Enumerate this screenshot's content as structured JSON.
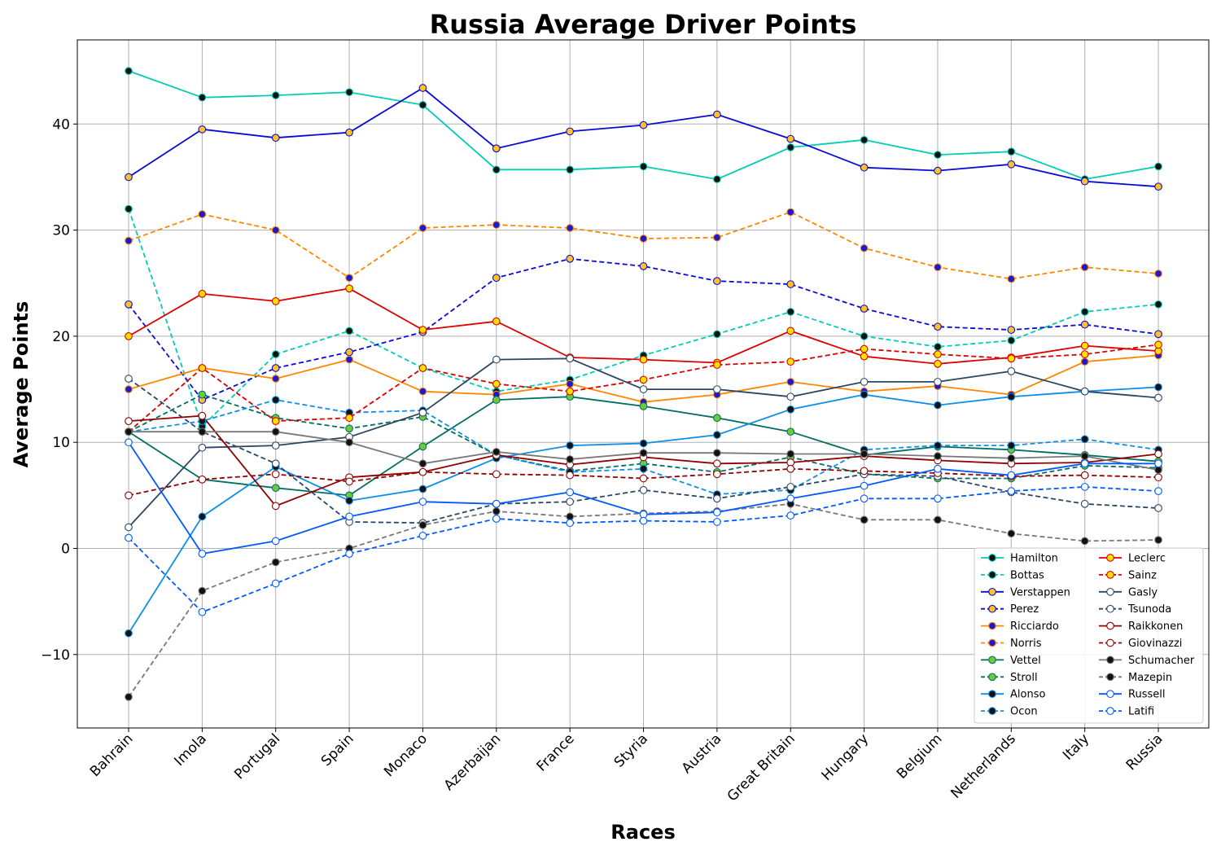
{
  "chart_data": {
    "type": "line",
    "title": "Russia Average Driver Points",
    "xlabel": "Races",
    "ylabel": "Average Points",
    "ylim": [
      -16.5,
      48
    ],
    "yticks": [
      -10,
      0,
      10,
      20,
      30,
      40
    ],
    "ytick_labels": [
      "−10",
      "0",
      "10",
      "20",
      "30",
      "40"
    ],
    "grid": true,
    "legend_position": "lower-right",
    "categories": [
      "Bahrain",
      "Imola",
      "Portugal",
      "Spain",
      "Monaco",
      "Azerbaijan",
      "France",
      "Styria",
      "Austria",
      "Great Britain",
      "Hungary",
      "Belgium",
      "Netherlands",
      "Italy",
      "Russia"
    ],
    "series": [
      {
        "name": "Hamilton",
        "color": "#00cdb5",
        "marker": "#111111",
        "dashed": false,
        "values": [
          45.0,
          42.5,
          42.7,
          43.0,
          41.8,
          35.7,
          35.7,
          36.0,
          34.8,
          37.8,
          38.5,
          37.1,
          37.4,
          34.8,
          36.0
        ]
      },
      {
        "name": "Bottas",
        "color": "#00cdb5",
        "marker": "#111111",
        "dashed": true,
        "values": [
          32.0,
          11.5,
          18.3,
          20.5,
          17.0,
          14.8,
          15.9,
          18.2,
          20.2,
          22.3,
          20.0,
          19.0,
          19.6,
          22.3,
          23.0
        ]
      },
      {
        "name": "Verstappen",
        "color": "#0a0ad6",
        "marker": "#ffc125",
        "dashed": false,
        "values": [
          35.0,
          39.5,
          38.7,
          39.2,
          43.4,
          37.7,
          39.3,
          39.9,
          40.9,
          38.6,
          35.9,
          35.6,
          36.2,
          34.6,
          34.1
        ]
      },
      {
        "name": "Perez",
        "color": "#0a0ad6",
        "marker": "#ffc125",
        "dashed": true,
        "values": [
          23.0,
          14.0,
          17.0,
          18.5,
          20.4,
          25.5,
          27.3,
          26.6,
          25.2,
          24.9,
          22.6,
          20.9,
          20.6,
          21.1,
          20.2
        ]
      },
      {
        "name": "Ricciardo",
        "color": "#ff8700",
        "marker": "#1a1ad6",
        "dashed": false,
        "values": [
          15.0,
          17.0,
          16.0,
          17.8,
          14.8,
          14.5,
          15.5,
          13.8,
          14.5,
          15.7,
          14.8,
          15.3,
          14.5,
          17.6,
          18.2
        ]
      },
      {
        "name": "Norris",
        "color": "#ff8700",
        "marker": "#1a1ad6",
        "dashed": true,
        "values": [
          29.0,
          31.5,
          30.0,
          25.5,
          30.2,
          30.5,
          30.2,
          29.2,
          29.3,
          31.7,
          28.3,
          26.5,
          25.4,
          26.5,
          25.9
        ]
      },
      {
        "name": "Vettel",
        "color": "#006f62",
        "marker": "#6ccb3c",
        "dashed": false,
        "values": [
          11.0,
          6.5,
          5.7,
          5.0,
          9.6,
          14.0,
          14.3,
          13.4,
          12.3,
          11.0,
          8.8,
          9.6,
          9.3,
          8.8,
          8.2
        ]
      },
      {
        "name": "Stroll",
        "color": "#006f62",
        "marker": "#6ccb3c",
        "dashed": true,
        "values": [
          11.0,
          14.5,
          12.3,
          11.3,
          12.4,
          8.8,
          7.3,
          8.0,
          7.2,
          8.6,
          7.0,
          6.6,
          6.6,
          7.8,
          7.6
        ]
      },
      {
        "name": "Alonso",
        "color": "#0d8fe8",
        "marker": "#111111",
        "dashed": false,
        "values": [
          -8.0,
          3.0,
          7.7,
          4.5,
          5.6,
          8.5,
          9.7,
          9.9,
          10.7,
          13.1,
          14.5,
          13.5,
          14.3,
          14.8,
          15.2
        ]
      },
      {
        "name": "Ocon",
        "color": "#0d8fe8",
        "marker": "#111111",
        "dashed": true,
        "values": [
          11.0,
          12.0,
          14.0,
          12.8,
          13.0,
          8.8,
          7.2,
          7.5,
          5.1,
          5.5,
          9.3,
          9.7,
          9.7,
          10.3,
          9.3
        ]
      },
      {
        "name": "Leclerc",
        "color": "#dc0000",
        "marker": "#ffe000",
        "dashed": false,
        "values": [
          20.0,
          24.0,
          23.3,
          24.5,
          20.6,
          21.4,
          18.0,
          17.8,
          17.5,
          20.5,
          18.1,
          17.4,
          18.0,
          19.1,
          18.6
        ]
      },
      {
        "name": "Sainz",
        "color": "#dc0000",
        "marker": "#ffe000",
        "dashed": true,
        "values": [
          11.0,
          17.0,
          12.0,
          12.3,
          17.0,
          15.5,
          14.8,
          15.9,
          17.3,
          17.6,
          18.8,
          18.3,
          17.9,
          18.3,
          19.2
        ]
      },
      {
        "name": "Gasly",
        "color": "#2b4562",
        "marker": "#ffffff",
        "dashed": false,
        "values": [
          2.0,
          9.5,
          9.7,
          10.5,
          12.8,
          17.8,
          17.9,
          15.0,
          15.0,
          14.3,
          15.7,
          15.7,
          16.7,
          14.8,
          14.2
        ]
      },
      {
        "name": "Tsunoda",
        "color": "#2b4562",
        "marker": "#ffffff",
        "dashed": true,
        "values": [
          16.0,
          11.0,
          8.0,
          2.5,
          2.4,
          4.2,
          4.4,
          5.5,
          4.7,
          5.8,
          7.0,
          6.8,
          5.3,
          4.2,
          3.8
        ]
      },
      {
        "name": "Raikkonen",
        "color": "#900000",
        "marker": "#ffffff",
        "dashed": false,
        "values": [
          12.0,
          12.5,
          4.0,
          6.7,
          7.2,
          8.8,
          7.9,
          8.6,
          8.0,
          8.1,
          8.7,
          8.3,
          8.0,
          8.1,
          8.9
        ]
      },
      {
        "name": "Giovinazzi",
        "color": "#900000",
        "marker": "#ffffff",
        "dashed": true,
        "values": [
          5.0,
          6.5,
          7.0,
          6.3,
          7.2,
          7.0,
          6.9,
          6.6,
          7.0,
          7.5,
          7.3,
          7.1,
          6.8,
          6.9,
          6.7
        ]
      },
      {
        "name": "Schumacher",
        "color": "#787878",
        "marker": "#111111",
        "dashed": false,
        "values": [
          11.0,
          11.0,
          11.0,
          10.0,
          8.0,
          9.1,
          8.4,
          9.0,
          9.0,
          8.9,
          8.9,
          8.7,
          8.5,
          8.7,
          7.4
        ]
      },
      {
        "name": "Mazepin",
        "color": "#787878",
        "marker": "#111111",
        "dashed": true,
        "values": [
          -14.0,
          -4.0,
          -1.3,
          0.0,
          2.2,
          3.5,
          3.0,
          3.3,
          3.5,
          4.2,
          2.7,
          2.7,
          1.4,
          0.7,
          0.8
        ]
      },
      {
        "name": "Russell",
        "color": "#005aff",
        "marker": "#ffffff",
        "dashed": false,
        "values": [
          10.0,
          -0.5,
          0.7,
          3.0,
          4.4,
          4.2,
          5.3,
          3.2,
          3.4,
          4.7,
          5.9,
          7.5,
          6.9,
          8.0,
          8.0
        ]
      },
      {
        "name": "Latifi",
        "color": "#005aff",
        "marker": "#ffffff",
        "dashed": true,
        "values": [
          1.0,
          -6.0,
          -3.3,
          -0.5,
          1.2,
          2.8,
          2.4,
          2.6,
          2.5,
          3.1,
          4.7,
          4.7,
          5.4,
          5.8,
          5.4
        ]
      }
    ]
  }
}
